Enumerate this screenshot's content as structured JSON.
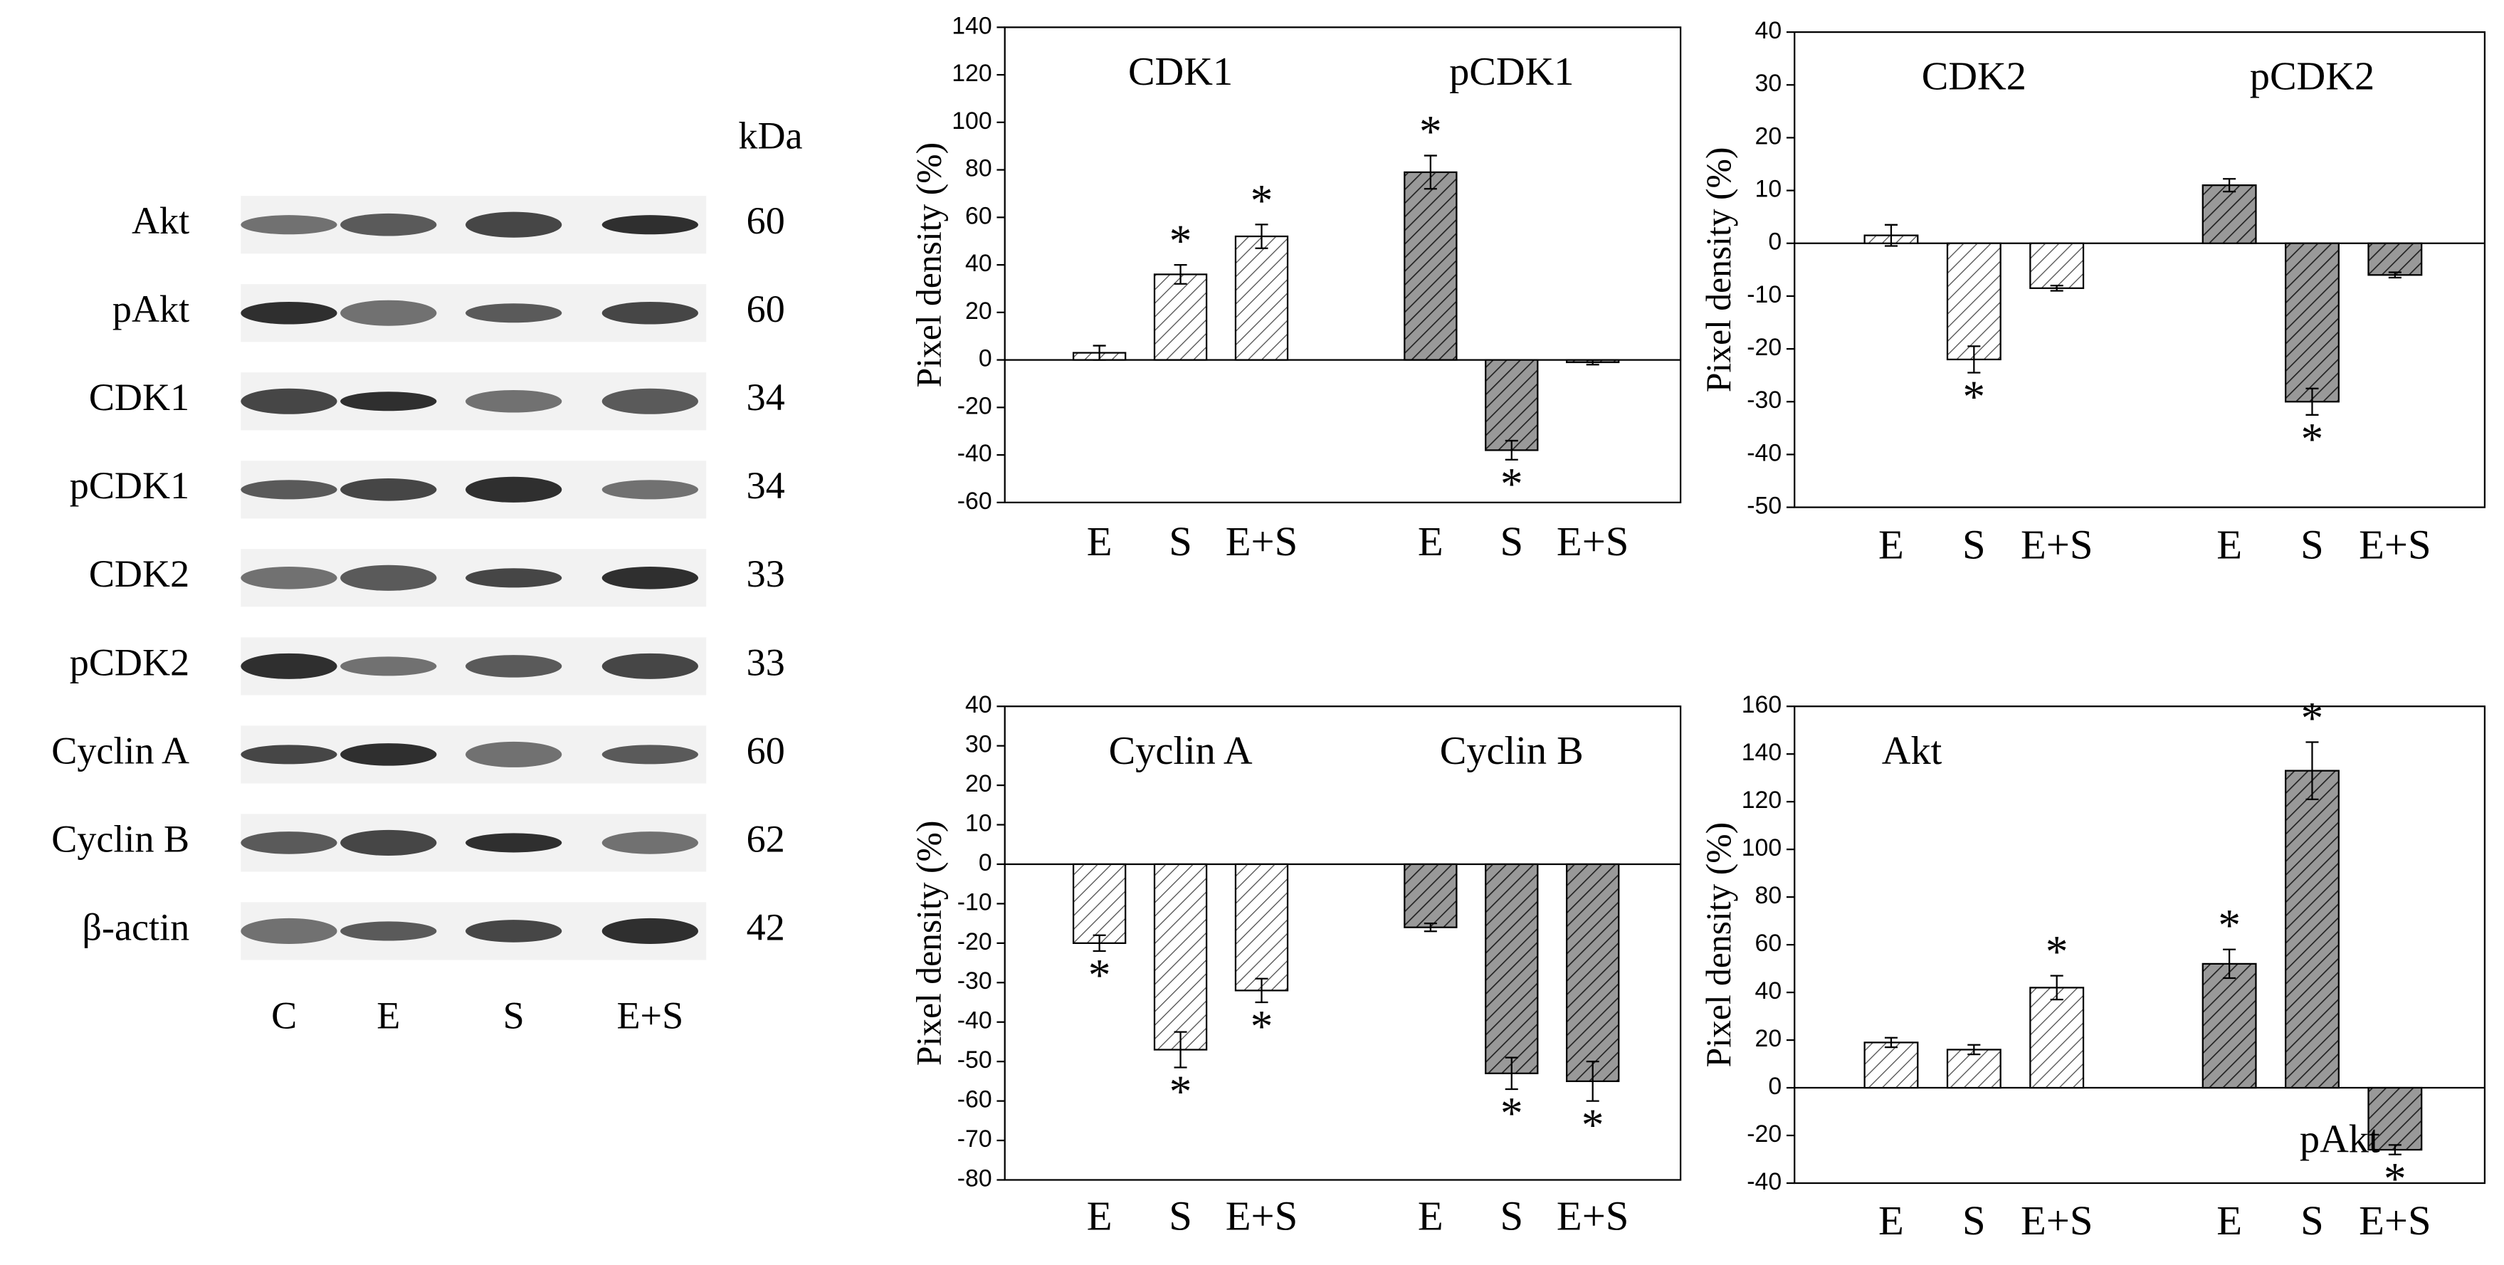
{
  "blot": {
    "kDa_header": "kDa",
    "rows": [
      {
        "label": "Akt",
        "kDa": 60
      },
      {
        "label": "pAkt",
        "kDa": 60
      },
      {
        "label": "CDK1",
        "kDa": 34
      },
      {
        "label": "pCDK1",
        "kDa": 34
      },
      {
        "label": "CDK2",
        "kDa": 33
      },
      {
        "label": "pCDK2",
        "kDa": 33
      },
      {
        "label": "Cyclin A",
        "kDa": 60
      },
      {
        "label": "Cyclin B",
        "kDa": 62
      },
      {
        "label": "β-actin",
        "kDa": 42
      }
    ],
    "lanes": [
      "C",
      "E",
      "S",
      "E+S"
    ]
  },
  "chart_data": [
    {
      "type": "bar",
      "y_label": "Pixel density (%)",
      "ylim": [
        -60,
        140
      ],
      "yticks": [
        -60,
        -40,
        -20,
        0,
        20,
        40,
        60,
        80,
        100,
        120,
        140
      ],
      "groups": [
        {
          "name": "CDK1",
          "color": "#e6e6e6",
          "categories": [
            "E",
            "S",
            "E+S"
          ],
          "values": [
            3,
            36,
            52
          ],
          "errors": [
            3,
            4,
            5
          ],
          "markers": [
            null,
            "*",
            "*"
          ]
        },
        {
          "name": "pCDK1",
          "color": "#8c8c8c",
          "categories": [
            "E",
            "S",
            "E+S"
          ],
          "values": [
            79,
            -38,
            -1
          ],
          "errors": [
            7,
            4,
            1
          ],
          "markers": [
            "*",
            "*",
            null
          ]
        }
      ]
    },
    {
      "type": "bar",
      "y_label": "Pixel density (%)",
      "ylim": [
        -50,
        40
      ],
      "yticks": [
        -50,
        -40,
        -30,
        -20,
        -10,
        0,
        10,
        20,
        30,
        40
      ],
      "groups": [
        {
          "name": "CDK2",
          "color": "#e6e6e6",
          "categories": [
            "E",
            "S",
            "E+S"
          ],
          "values": [
            1.5,
            -22,
            -8.5
          ],
          "errors": [
            2,
            2.5,
            0.5
          ],
          "markers": [
            null,
            "*",
            null
          ]
        },
        {
          "name": "pCDK2",
          "color": "#8c8c8c",
          "categories": [
            "E",
            "S",
            "E+S"
          ],
          "values": [
            11,
            -30,
            -6
          ],
          "errors": [
            1.2,
            2.5,
            0.5
          ],
          "markers": [
            null,
            "*",
            null
          ]
        }
      ]
    },
    {
      "type": "bar",
      "y_label": "Pixel density (%)",
      "ylim": [
        -80,
        40
      ],
      "yticks": [
        -80,
        -70,
        -60,
        -50,
        -40,
        -30,
        -20,
        -10,
        0,
        10,
        20,
        30,
        40
      ],
      "groups": [
        {
          "name": "Cyclin A",
          "color": "#e6e6e6",
          "categories": [
            "E",
            "S",
            "E+S"
          ],
          "values": [
            -20,
            -47,
            -32
          ],
          "errors": [
            2,
            4.5,
            3
          ],
          "markers": [
            "*",
            "*",
            "*"
          ]
        },
        {
          "name": "Cyclin B",
          "color": "#8c8c8c",
          "categories": [
            "E",
            "S",
            "E+S"
          ],
          "values": [
            -16,
            -53,
            -55
          ],
          "errors": [
            1,
            4,
            5
          ],
          "markers": [
            null,
            "*",
            "*"
          ]
        }
      ]
    },
    {
      "type": "bar",
      "y_label": "Pixel density (%)",
      "ylim": [
        -40,
        160
      ],
      "yticks": [
        -40,
        -20,
        0,
        20,
        40,
        60,
        80,
        100,
        120,
        140,
        160
      ],
      "groups": [
        {
          "name": "Akt",
          "color": "#e6e6e6",
          "categories": [
            "E",
            "S",
            "E+S"
          ],
          "values": [
            19,
            16,
            42
          ],
          "errors": [
            2,
            2,
            5
          ],
          "markers": [
            null,
            null,
            "*"
          ]
        },
        {
          "name": "pAkt",
          "color": "#8c8c8c",
          "categories": [
            "E",
            "S",
            "E+S"
          ],
          "values": [
            52,
            133,
            -26
          ],
          "errors": [
            6,
            12,
            2
          ],
          "markers": [
            "*",
            "*",
            "*"
          ]
        }
      ]
    }
  ]
}
